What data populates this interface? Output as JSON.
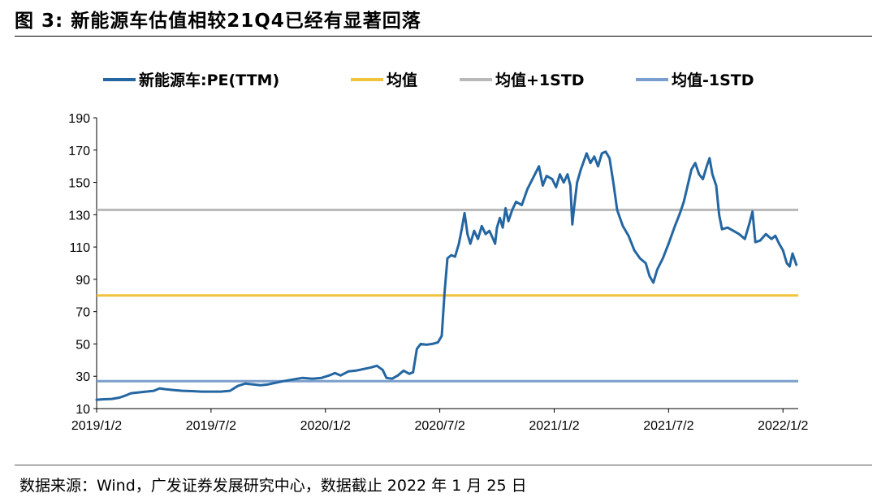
{
  "title": "图  3:  新能源车估值相较21Q4已经有显著回落",
  "source": "数据来源：Wind，广发证券发展研究中心，数据截止 2022 年 1 月 25 日",
  "colors": {
    "series": "#2466A1",
    "mean": "#F0C33C",
    "plus1std": "#B8B8B8",
    "minus1std": "#7B9FCC"
  },
  "chart_data": {
    "type": "line",
    "title": "图  3:  新能源车估值相较21Q4已经有显著回落",
    "xlabel": "",
    "ylabel": "",
    "ylim": [
      10,
      190
    ],
    "yticks": [
      10,
      30,
      50,
      70,
      90,
      110,
      130,
      150,
      170,
      190
    ],
    "xticks": [
      {
        "label": "2019/1/2",
        "t": 0
      },
      {
        "label": "2019/7/2",
        "t": 6
      },
      {
        "label": "2020/1/2",
        "t": 12
      },
      {
        "label": "2020/7/2",
        "t": 18
      },
      {
        "label": "2021/1/2",
        "t": 24
      },
      {
        "label": "2021/7/2",
        "t": 30
      },
      {
        "label": "2022/1/2",
        "t": 36
      }
    ],
    "xlim": [
      0,
      36.8
    ],
    "legend": [
      "新能源车:PE(TTM)",
      "均值",
      "均值+1STD",
      "均值-1STD"
    ],
    "legend_position": "top",
    "series": [
      {
        "name": "新能源车:PE(TTM)",
        "points": [
          [
            0.0,
            15.5
          ],
          [
            0.4,
            15.8
          ],
          [
            0.8,
            16.0
          ],
          [
            1.2,
            16.8
          ],
          [
            1.5,
            18.0
          ],
          [
            1.8,
            19.5
          ],
          [
            2.2,
            20.0
          ],
          [
            2.6,
            20.5
          ],
          [
            3.0,
            21.0
          ],
          [
            3.3,
            22.5
          ],
          [
            3.6,
            22.0
          ],
          [
            4.0,
            21.5
          ],
          [
            4.5,
            21.0
          ],
          [
            5.0,
            20.8
          ],
          [
            5.5,
            20.5
          ],
          [
            6.0,
            20.5
          ],
          [
            6.5,
            20.5
          ],
          [
            7.0,
            21.0
          ],
          [
            7.4,
            24.0
          ],
          [
            7.8,
            25.5
          ],
          [
            8.2,
            25.0
          ],
          [
            8.6,
            24.5
          ],
          [
            9.0,
            25.0
          ],
          [
            9.4,
            26.0
          ],
          [
            9.8,
            27.0
          ],
          [
            10.3,
            28.0
          ],
          [
            10.8,
            29.0
          ],
          [
            11.3,
            28.5
          ],
          [
            11.8,
            29.0
          ],
          [
            12.2,
            30.5
          ],
          [
            12.5,
            32.0
          ],
          [
            12.8,
            30.5
          ],
          [
            13.2,
            33.0
          ],
          [
            13.6,
            33.5
          ],
          [
            14.0,
            34.5
          ],
          [
            14.4,
            35.5
          ],
          [
            14.7,
            36.5
          ],
          [
            15.0,
            34.0
          ],
          [
            15.2,
            29.0
          ],
          [
            15.5,
            28.5
          ],
          [
            15.8,
            30.5
          ],
          [
            16.1,
            33.5
          ],
          [
            16.4,
            31.5
          ],
          [
            16.6,
            32.5
          ],
          [
            16.8,
            47.0
          ],
          [
            17.0,
            50.0
          ],
          [
            17.3,
            49.5
          ],
          [
            17.6,
            50.0
          ],
          [
            17.9,
            51.0
          ],
          [
            18.1,
            55.0
          ],
          [
            18.25,
            82.0
          ],
          [
            18.4,
            103.0
          ],
          [
            18.6,
            105.0
          ],
          [
            18.8,
            104.0
          ],
          [
            19.0,
            112.0
          ],
          [
            19.15,
            121.0
          ],
          [
            19.3,
            131.0
          ],
          [
            19.45,
            118.0
          ],
          [
            19.6,
            112.0
          ],
          [
            19.8,
            120.0
          ],
          [
            20.0,
            115.0
          ],
          [
            20.2,
            123.0
          ],
          [
            20.4,
            118.0
          ],
          [
            20.6,
            120.0
          ],
          [
            20.8,
            115.0
          ],
          [
            20.9,
            112.0
          ],
          [
            21.0,
            122.0
          ],
          [
            21.15,
            128.0
          ],
          [
            21.3,
            122.0
          ],
          [
            21.45,
            134.0
          ],
          [
            21.6,
            126.0
          ],
          [
            21.8,
            133.0
          ],
          [
            22.0,
            138.0
          ],
          [
            22.3,
            136.0
          ],
          [
            22.6,
            146.0
          ],
          [
            22.9,
            153.0
          ],
          [
            23.2,
            160.0
          ],
          [
            23.4,
            148.0
          ],
          [
            23.6,
            154.0
          ],
          [
            23.9,
            152.0
          ],
          [
            24.1,
            147.0
          ],
          [
            24.3,
            155.0
          ],
          [
            24.5,
            150.0
          ],
          [
            24.7,
            155.0
          ],
          [
            24.85,
            148.0
          ],
          [
            24.95,
            124.0
          ],
          [
            25.05,
            135.0
          ],
          [
            25.2,
            150.0
          ],
          [
            25.4,
            158.0
          ],
          [
            25.7,
            168.0
          ],
          [
            25.9,
            162.0
          ],
          [
            26.1,
            166.0
          ],
          [
            26.3,
            160.0
          ],
          [
            26.5,
            168.0
          ],
          [
            26.7,
            169.0
          ],
          [
            26.9,
            165.0
          ],
          [
            27.1,
            150.0
          ],
          [
            27.3,
            133.0
          ],
          [
            27.6,
            123.0
          ],
          [
            27.9,
            117.0
          ],
          [
            28.2,
            108.0
          ],
          [
            28.5,
            103.0
          ],
          [
            28.8,
            100.0
          ],
          [
            29.0,
            92.0
          ],
          [
            29.2,
            88.0
          ],
          [
            29.4,
            96.0
          ],
          [
            29.7,
            103.0
          ],
          [
            30.0,
            112.0
          ],
          [
            30.3,
            122.0
          ],
          [
            30.6,
            131.0
          ],
          [
            30.8,
            138.0
          ],
          [
            31.0,
            148.0
          ],
          [
            31.2,
            158.0
          ],
          [
            31.4,
            162.0
          ],
          [
            31.6,
            155.0
          ],
          [
            31.8,
            152.0
          ],
          [
            32.0,
            160.0
          ],
          [
            32.15,
            165.0
          ],
          [
            32.3,
            155.0
          ],
          [
            32.5,
            148.0
          ],
          [
            32.65,
            130.0
          ],
          [
            32.8,
            121.0
          ],
          [
            33.1,
            122.0
          ],
          [
            33.4,
            120.0
          ],
          [
            33.7,
            118.0
          ],
          [
            34.0,
            115.0
          ],
          [
            34.25,
            125.0
          ],
          [
            34.4,
            132.0
          ],
          [
            34.55,
            113.0
          ],
          [
            34.8,
            114.0
          ],
          [
            35.1,
            118.0
          ],
          [
            35.4,
            115.0
          ],
          [
            35.6,
            117.0
          ],
          [
            35.8,
            112.0
          ],
          [
            36.0,
            108.0
          ],
          [
            36.2,
            100.0
          ],
          [
            36.35,
            98.0
          ],
          [
            36.5,
            106.0
          ],
          [
            36.7,
            99.0
          ]
        ]
      },
      {
        "name": "均值",
        "value": 80
      },
      {
        "name": "均值+1STD",
        "value": 133
      },
      {
        "name": "均值-1STD",
        "value": 27
      }
    ]
  }
}
